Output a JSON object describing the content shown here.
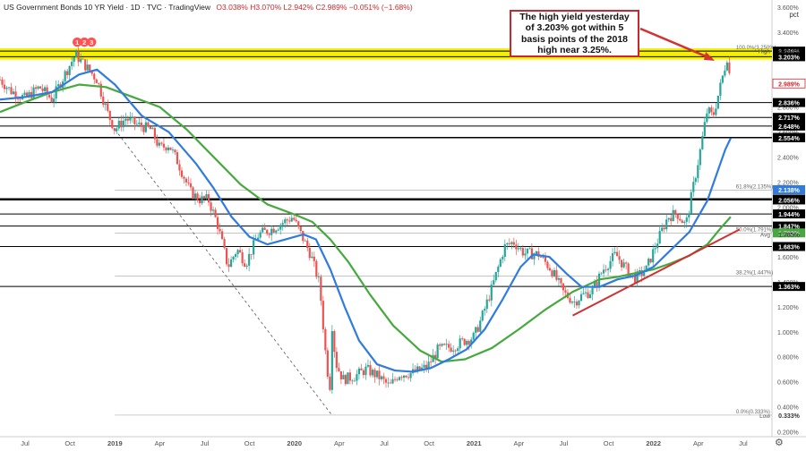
{
  "header": {
    "title": "US Government Bonds 10 YR Yield · 1D · TVC · TradingView",
    "ohlc": "O3.038% H3.070% L2.942% C2.989% −0.051% (−1.68%)"
  },
  "axis_unit": "pct",
  "callout": "The high yield yesterday of 3.203% got within 5 basis points of the 2018 high near 3.25%.",
  "colors": {
    "up": "#26a69a",
    "down": "#ef5350",
    "ma_fast": "#2f7be0",
    "ma_slow": "#46a93d",
    "band": "#f4f000",
    "trend": "#d03030",
    "callout_border": "#c8282d",
    "highlight": "#ff5252"
  },
  "chart_data": {
    "type": "line",
    "title": "US Government Bonds 10 YR Yield",
    "ylim": [
      0.16,
      3.6
    ],
    "y_ticks": [
      "0.200%",
      "0.400%",
      "0.600%",
      "0.800%",
      "1.000%",
      "1.200%",
      "1.400%",
      "1.600%",
      "1.800%",
      "2.000%",
      "2.200%",
      "2.400%",
      "2.600%",
      "2.800%",
      "3.000%",
      "3.200%",
      "3.400%",
      "3.600%"
    ],
    "x_ticks": [
      {
        "label": "Jul",
        "t": 2018.5
      },
      {
        "label": "Oct",
        "t": 2018.75
      },
      {
        "label": "2019",
        "t": 2019.0
      },
      {
        "label": "Apr",
        "t": 2019.25
      },
      {
        "label": "Jul",
        "t": 2019.5
      },
      {
        "label": "Oct",
        "t": 2019.75
      },
      {
        "label": "2020",
        "t": 2020.0
      },
      {
        "label": "Apr",
        "t": 2020.25
      },
      {
        "label": "Jul",
        "t": 2020.5
      },
      {
        "label": "Oct",
        "t": 2020.75
      },
      {
        "label": "2021",
        "t": 2021.0
      },
      {
        "label": "Apr",
        "t": 2021.25
      },
      {
        "label": "Jul",
        "t": 2021.5
      },
      {
        "label": "Oct",
        "t": 2021.75
      },
      {
        "label": "2022",
        "t": 2022.0
      },
      {
        "label": "Apr",
        "t": 2022.25
      },
      {
        "label": "Jul",
        "t": 2022.5
      }
    ],
    "xlim": [
      2018.36,
      2022.66
    ],
    "series": [
      {
        "key": "price",
        "points": [
          [
            2018.36,
            3.02
          ],
          [
            2018.42,
            2.93
          ],
          [
            2018.5,
            2.87
          ],
          [
            2018.58,
            2.96
          ],
          [
            2018.65,
            2.86
          ],
          [
            2018.72,
            3.06
          ],
          [
            2018.78,
            3.22
          ],
          [
            2018.83,
            3.14
          ],
          [
            2018.9,
            3.02
          ],
          [
            2018.96,
            2.75
          ],
          [
            2019.0,
            2.62
          ],
          [
            2019.06,
            2.71
          ],
          [
            2019.12,
            2.66
          ],
          [
            2019.2,
            2.62
          ],
          [
            2019.25,
            2.47
          ],
          [
            2019.3,
            2.5
          ],
          [
            2019.35,
            2.36
          ],
          [
            2019.42,
            2.12
          ],
          [
            2019.47,
            2.06
          ],
          [
            2019.52,
            2.06
          ],
          [
            2019.57,
            1.87
          ],
          [
            2019.63,
            1.52
          ],
          [
            2019.68,
            1.66
          ],
          [
            2019.73,
            1.55
          ],
          [
            2019.8,
            1.78
          ],
          [
            2019.87,
            1.82
          ],
          [
            2019.93,
            1.87
          ],
          [
            2019.99,
            1.92
          ],
          [
            2020.04,
            1.77
          ],
          [
            2020.09,
            1.62
          ],
          [
            2020.14,
            1.38
          ],
          [
            2020.18,
            0.72
          ],
          [
            2020.2,
            0.55
          ],
          [
            2020.21,
            1.05
          ],
          [
            2020.23,
            0.75
          ],
          [
            2020.27,
            0.62
          ],
          [
            2020.33,
            0.64
          ],
          [
            2020.4,
            0.7
          ],
          [
            2020.47,
            0.64
          ],
          [
            2020.53,
            0.56
          ],
          [
            2020.58,
            0.66
          ],
          [
            2020.66,
            0.67
          ],
          [
            2020.74,
            0.72
          ],
          [
            2020.8,
            0.86
          ],
          [
            2020.88,
            0.88
          ],
          [
            2020.95,
            0.93
          ],
          [
            2021.0,
            0.96
          ],
          [
            2021.04,
            1.1
          ],
          [
            2021.1,
            1.35
          ],
          [
            2021.17,
            1.68
          ],
          [
            2021.22,
            1.72
          ],
          [
            2021.28,
            1.63
          ],
          [
            2021.36,
            1.62
          ],
          [
            2021.43,
            1.5
          ],
          [
            2021.5,
            1.31
          ],
          [
            2021.56,
            1.24
          ],
          [
            2021.6,
            1.29
          ],
          [
            2021.66,
            1.33
          ],
          [
            2021.72,
            1.5
          ],
          [
            2021.79,
            1.62
          ],
          [
            2021.85,
            1.5
          ],
          [
            2021.9,
            1.43
          ],
          [
            2021.96,
            1.5
          ],
          [
            2022.02,
            1.72
          ],
          [
            2022.08,
            1.92
          ],
          [
            2022.13,
            1.95
          ],
          [
            2022.18,
            1.85
          ],
          [
            2022.22,
            2.15
          ],
          [
            2022.26,
            2.45
          ],
          [
            2022.3,
            2.78
          ],
          [
            2022.33,
            2.72
          ],
          [
            2022.37,
            2.95
          ],
          [
            2022.41,
            3.2
          ],
          [
            2022.43,
            2.99
          ]
        ]
      },
      {
        "key": "ma_fast",
        "points": [
          [
            2018.36,
            2.86
          ],
          [
            2018.5,
            2.88
          ],
          [
            2018.65,
            2.92
          ],
          [
            2018.8,
            3.06
          ],
          [
            2018.9,
            3.1
          ],
          [
            2019.0,
            2.98
          ],
          [
            2019.15,
            2.73
          ],
          [
            2019.3,
            2.6
          ],
          [
            2019.45,
            2.35
          ],
          [
            2019.55,
            2.15
          ],
          [
            2019.65,
            1.92
          ],
          [
            2019.75,
            1.76
          ],
          [
            2019.85,
            1.7
          ],
          [
            2019.95,
            1.74
          ],
          [
            2020.05,
            1.78
          ],
          [
            2020.12,
            1.74
          ],
          [
            2020.2,
            1.5
          ],
          [
            2020.28,
            1.2
          ],
          [
            2020.36,
            0.93
          ],
          [
            2020.46,
            0.74
          ],
          [
            2020.56,
            0.69
          ],
          [
            2020.66,
            0.68
          ],
          [
            2020.76,
            0.71
          ],
          [
            2020.86,
            0.78
          ],
          [
            2020.96,
            0.86
          ],
          [
            2021.06,
            1.02
          ],
          [
            2021.16,
            1.26
          ],
          [
            2021.26,
            1.52
          ],
          [
            2021.33,
            1.62
          ],
          [
            2021.42,
            1.6
          ],
          [
            2021.52,
            1.46
          ],
          [
            2021.6,
            1.36
          ],
          [
            2021.7,
            1.36
          ],
          [
            2021.8,
            1.42
          ],
          [
            2021.9,
            1.45
          ],
          [
            2022.0,
            1.52
          ],
          [
            2022.1,
            1.66
          ],
          [
            2022.2,
            1.8
          ],
          [
            2022.3,
            2.05
          ],
          [
            2022.4,
            2.46
          ],
          [
            2022.43,
            2.55
          ]
        ]
      },
      {
        "key": "ma_slow",
        "points": [
          [
            2018.36,
            2.76
          ],
          [
            2018.5,
            2.84
          ],
          [
            2018.65,
            2.92
          ],
          [
            2018.8,
            2.98
          ],
          [
            2018.95,
            2.96
          ],
          [
            2019.1,
            2.88
          ],
          [
            2019.25,
            2.8
          ],
          [
            2019.4,
            2.62
          ],
          [
            2019.55,
            2.4
          ],
          [
            2019.7,
            2.18
          ],
          [
            2019.85,
            2.02
          ],
          [
            2020.0,
            1.94
          ],
          [
            2020.1,
            1.88
          ],
          [
            2020.2,
            1.74
          ],
          [
            2020.3,
            1.56
          ],
          [
            2020.42,
            1.3
          ],
          [
            2020.55,
            1.05
          ],
          [
            2020.7,
            0.85
          ],
          [
            2020.82,
            0.76
          ],
          [
            2020.95,
            0.78
          ],
          [
            2021.1,
            0.87
          ],
          [
            2021.25,
            1.02
          ],
          [
            2021.4,
            1.18
          ],
          [
            2021.55,
            1.32
          ],
          [
            2021.7,
            1.42
          ],
          [
            2021.8,
            1.44
          ],
          [
            2021.9,
            1.47
          ],
          [
            2022.0,
            1.5
          ],
          [
            2022.1,
            1.55
          ],
          [
            2022.2,
            1.61
          ],
          [
            2022.3,
            1.7
          ],
          [
            2022.38,
            1.84
          ],
          [
            2022.43,
            1.92
          ]
        ]
      }
    ],
    "hlines": [
      {
        "y": 3.248,
        "label": "3.248%",
        "color": "#000",
        "weight": 1
      },
      {
        "y": 3.203,
        "label": "3.203%",
        "color": "#000",
        "weight": 1
      },
      {
        "y": 2.836,
        "label": "2.836%",
        "color": "#000",
        "weight": 1
      },
      {
        "y": 2.717,
        "label": "2.717%",
        "color": "#000",
        "weight": 1
      },
      {
        "y": 2.648,
        "label": "2.648%",
        "color": "#000",
        "weight": 1
      },
      {
        "y": 2.557,
        "label": "2.557%",
        "color": "#000",
        "weight": 1
      },
      {
        "y": 2.554,
        "label": "2.554%",
        "color": "#000",
        "weight": 1
      },
      {
        "y": 2.063,
        "label": "2.063%",
        "color": "#000",
        "weight": 2
      },
      {
        "y": 2.056,
        "label": "2.056%",
        "color": "#000",
        "weight": 1
      },
      {
        "y": 1.944,
        "label": "1.944%",
        "color": "#000",
        "weight": 1
      },
      {
        "y": 1.847,
        "label": "1.847%",
        "color": "#000",
        "weight": 1
      },
      {
        "y": 1.683,
        "label": "1.683%",
        "color": "#000",
        "weight": 1
      },
      {
        "y": 1.363,
        "label": "1.363%",
        "color": "#000",
        "weight": 1
      }
    ],
    "fib": [
      {
        "level": "100.0%(3.250%)",
        "y": 3.25
      },
      {
        "level": "61.8%(2.135%)",
        "y": 2.135
      },
      {
        "level": "50.0%(1.791%)",
        "y": 1.791
      },
      {
        "level": "38.2%(1.447%)",
        "y": 1.447
      },
      {
        "level": "0.0%(0.333%)",
        "y": 0.333
      }
    ],
    "badges": [
      {
        "text": "High",
        "value": "3.252%",
        "y": 3.252,
        "style": "plain"
      },
      {
        "text": "",
        "value": "2.989%",
        "y": 2.989,
        "style": "red"
      },
      {
        "text": "",
        "value": "2.138%",
        "y": 2.138,
        "style": "blue"
      },
      {
        "text": "",
        "value": "1.792%",
        "y": 1.792,
        "style": "green"
      },
      {
        "text": "Avg",
        "value": "1.785%",
        "y": 1.785,
        "style": "plain"
      },
      {
        "text": "Low",
        "value": "0.333%",
        "y": 0.333,
        "style": "plain"
      }
    ],
    "markers": [
      "1",
      "2",
      "3"
    ],
    "trend": {
      "from": [
        2021.55,
        1.13
      ],
      "to": [
        2022.48,
        1.82
      ]
    },
    "diag": {
      "from": [
        2019.0,
        2.62
      ],
      "to": [
        2020.21,
        0.33
      ]
    }
  }
}
